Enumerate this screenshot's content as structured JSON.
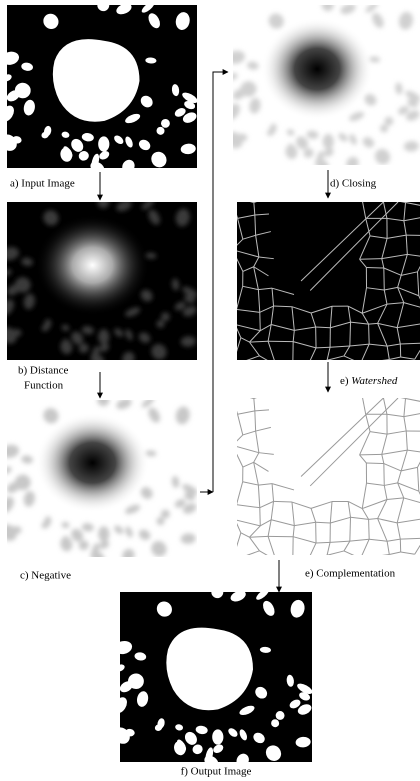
{
  "nodes": [
    {
      "label": "a) Input Image"
    },
    {
      "label_lines": [
        "b) Distance",
        "Function"
      ]
    },
    {
      "label": "c) Negative"
    },
    {
      "label": "d) Closing"
    },
    {
      "label_prefix": "e)",
      "label": "Watershed"
    },
    {
      "label": "e) Complementation"
    },
    {
      "label": "f) Output Image"
    }
  ]
}
